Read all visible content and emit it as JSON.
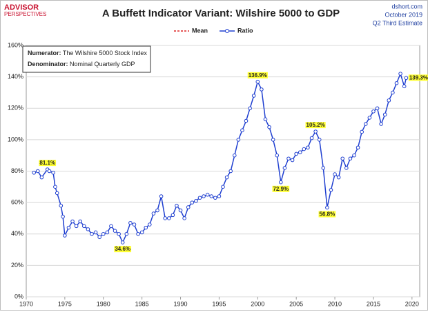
{
  "logo": {
    "top": "ADVISOR",
    "bottom": "PERSPECTIVES"
  },
  "source": {
    "site": "dshort.com",
    "date": "October 2019",
    "note": "Q2 Third Estimate"
  },
  "chart_data": {
    "type": "line",
    "title": "A Buffett Indicator Variant: Wilshire 5000 to GDP",
    "info_box": [
      {
        "label": "Numerator:",
        "text": "The Wilshire 5000 Stock Index"
      },
      {
        "label": "Denominator:",
        "text": "Nominal Quarterly GDP"
      }
    ],
    "x": [
      1971.0,
      1971.5,
      1972.0,
      1972.75,
      1973.0,
      1973.5,
      1973.75,
      1974.0,
      1974.5,
      1974.75,
      1975.0,
      1975.5,
      1976.0,
      1976.5,
      1977.0,
      1977.5,
      1978.0,
      1978.5,
      1979.0,
      1979.5,
      1980.0,
      1980.5,
      1981.0,
      1981.5,
      1982.0,
      1982.5,
      1983.0,
      1983.5,
      1984.0,
      1984.5,
      1985.0,
      1985.5,
      1986.0,
      1986.5,
      1987.0,
      1987.5,
      1988.0,
      1988.5,
      1989.0,
      1989.5,
      1990.0,
      1990.5,
      1991.0,
      1991.5,
      1992.0,
      1992.5,
      1993.0,
      1993.5,
      1994.0,
      1994.5,
      1995.0,
      1995.5,
      1996.0,
      1996.5,
      1997.0,
      1997.5,
      1998.0,
      1998.5,
      1999.0,
      1999.5,
      2000.0,
      2000.5,
      2001.0,
      2001.5,
      2002.0,
      2002.5,
      2003.0,
      2003.5,
      2004.0,
      2004.5,
      2005.0,
      2005.5,
      2006.0,
      2006.5,
      2007.0,
      2007.5,
      2008.0,
      2008.5,
      2009.0,
      2009.5,
      2010.0,
      2010.5,
      2011.0,
      2011.5,
      2012.0,
      2012.5,
      2013.0,
      2013.5,
      2014.0,
      2014.5,
      2015.0,
      2015.5,
      2016.0,
      2016.5,
      2017.0,
      2017.5,
      2018.0,
      2018.5,
      2019.0,
      2019.25
    ],
    "series": [
      {
        "name": "Mean",
        "color": "#dd2222",
        "dashed": true,
        "values": [
          null,
          null,
          null,
          null,
          null,
          null,
          null,
          null,
          null,
          null,
          null,
          null,
          null,
          null,
          null,
          null,
          null,
          null,
          null,
          null,
          null,
          null,
          null,
          null,
          null,
          null,
          null,
          null,
          null,
          null,
          null,
          null,
          null,
          null,
          null,
          null,
          null,
          null,
          null,
          null,
          null,
          null,
          null,
          null,
          null,
          null,
          null,
          null,
          null,
          null,
          null,
          null,
          null,
          null,
          null,
          null,
          null,
          null,
          null,
          null,
          null,
          null,
          null,
          null,
          null,
          null,
          null,
          null,
          null,
          null,
          null,
          null,
          null,
          null,
          null,
          null,
          null,
          null,
          null,
          null,
          null,
          null,
          null,
          null,
          null,
          null,
          null,
          null,
          null,
          null,
          null,
          null,
          null,
          null,
          null,
          null,
          null,
          null,
          null,
          null
        ]
      },
      {
        "name": "Ratio",
        "color": "#1f3fd0",
        "dashed": false,
        "values": [
          79,
          80,
          76,
          81.1,
          80,
          79,
          70,
          66,
          58,
          51,
          39,
          44,
          48,
          45,
          48,
          45,
          43,
          40,
          41,
          38,
          40,
          41,
          45,
          42,
          40,
          34.6,
          40,
          47,
          46,
          40,
          41,
          44,
          46,
          53,
          55,
          64,
          50,
          50,
          52,
          58,
          55,
          50,
          57,
          60,
          61,
          63,
          64,
          65,
          64,
          63,
          64,
          70,
          76,
          80,
          90,
          100,
          106,
          112,
          120,
          128,
          136.9,
          132,
          113,
          108,
          100,
          90,
          72.9,
          82,
          88,
          87,
          91,
          92,
          94,
          95,
          101,
          105.2,
          100,
          82,
          56.8,
          68,
          78,
          76,
          88,
          82,
          88,
          90,
          95,
          105,
          110,
          114,
          118,
          120,
          110,
          116,
          125,
          130,
          136,
          142,
          134,
          139.3
        ]
      }
    ],
    "annotations": [
      {
        "label": "81.1%",
        "x": 1972.75,
        "y": 81.1
      },
      {
        "label": "34.6%",
        "x": 1982.5,
        "y": 34.6
      },
      {
        "label": "136.9%",
        "x": 2000.0,
        "y": 136.9
      },
      {
        "label": "72.9%",
        "x": 2003.0,
        "y": 72.9
      },
      {
        "label": "105.2%",
        "x": 2007.5,
        "y": 105.2
      },
      {
        "label": "56.8%",
        "x": 2009.0,
        "y": 56.8
      },
      {
        "label": "139.3%",
        "x": 2019.25,
        "y": 139.3
      }
    ],
    "xlim": [
      1970,
      2021
    ],
    "xticks": [
      1970,
      1975,
      1980,
      1985,
      1990,
      1995,
      2000,
      2005,
      2010,
      2015,
      2020
    ],
    "ylim": [
      0,
      160
    ],
    "yticks": [
      {
        "value": 0,
        "label": "0%"
      },
      {
        "value": 20,
        "label": "20%"
      },
      {
        "value": 40,
        "label": "40%"
      },
      {
        "value": 60,
        "label": "60%"
      },
      {
        "value": 80,
        "label": "80%"
      },
      {
        "value": 100,
        "label": "100%"
      },
      {
        "value": 120,
        "label": "120%"
      },
      {
        "value": 140,
        "label": "140%"
      },
      {
        "value": 160,
        "label": "160%"
      }
    ],
    "grid": true
  }
}
